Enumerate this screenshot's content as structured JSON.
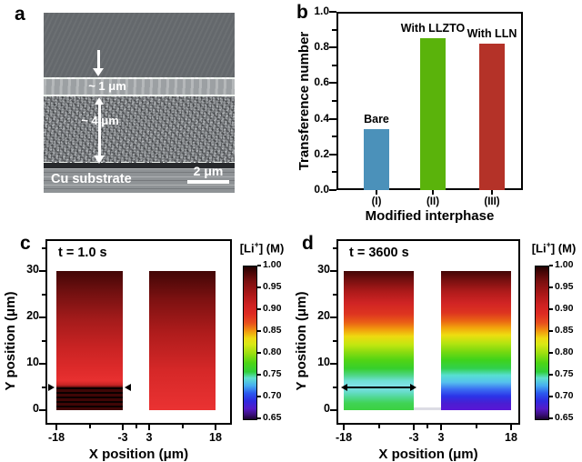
{
  "panels": {
    "a": "a",
    "b": "b",
    "c": "c",
    "d": "d"
  },
  "panel_a": {
    "layer1": "~ 1 μm",
    "layer2": "~ 4 μm",
    "substrate": "Cu substrate",
    "scale_bar": "2 μm"
  },
  "chart_data": [
    {
      "id": "b",
      "type": "bar",
      "categories": [
        "(I)",
        "(II)",
        "(III)"
      ],
      "values": [
        0.34,
        0.85,
        0.82
      ],
      "bar_labels": [
        "Bare",
        "With LLZTO",
        "With LLN"
      ],
      "bar_colors": [
        "#4b91ba",
        "#5ab30b",
        "#b43228"
      ],
      "xlabel": "Modified interphase",
      "ylabel": "Transference number",
      "ylim": [
        0.0,
        1.0
      ],
      "ytick_major_step": 0.2,
      "ytick_minor_step": 0.1,
      "grid": false,
      "legend": "none"
    },
    {
      "id": "c",
      "type": "heatmap",
      "title": "t = 1.0 s",
      "xlabel": "X position (μm)",
      "ylabel": "Y position (μm)",
      "xlim": [
        -18,
        18
      ],
      "ylim": [
        0,
        30
      ],
      "xticks": [
        "-18",
        "-3",
        "3",
        "18"
      ],
      "yticks": [
        "0",
        "10",
        "20",
        "30"
      ],
      "marker": {
        "type": "edge-arrows",
        "y": 5
      },
      "columns": [
        {
          "x_range": [
            -18,
            -3
          ],
          "profile_y_vs_conc": [
            [
              30,
              1.0
            ],
            [
              20,
              0.96
            ],
            [
              10,
              0.92
            ],
            [
              6,
              0.9
            ],
            [
              5,
              0.92
            ],
            [
              4,
              1.0
            ],
            [
              0,
              1.0
            ]
          ],
          "stripes": true,
          "stripe_band_y": [
            0,
            5
          ],
          "gradient": [
            "#420606 0%",
            "#711010 15%",
            "#a41b1b 35%",
            "#c92323 55%",
            "#dd2a2a 70%",
            "#e83030 79%",
            "#c62424 82%",
            "#3a0606 84%",
            "#2a0404 100%"
          ]
        },
        {
          "x_range": [
            3,
            18
          ],
          "profile_y_vs_conc": [
            [
              30,
              1.0
            ],
            [
              20,
              0.97
            ],
            [
              10,
              0.93
            ],
            [
              0,
              0.89
            ]
          ],
          "stripes": false,
          "gradient": [
            "#420606 0%",
            "#7c1111 20%",
            "#b01c1c 45%",
            "#d62828 72%",
            "#ea3232 100%"
          ]
        }
      ],
      "colorbar": {
        "label_pre": "[Li",
        "label_sup": "+",
        "label_post": "] (M)",
        "ticks": [
          "1.00",
          "0.95",
          "0.90",
          "0.85",
          "0.80",
          "0.75",
          "0.70",
          "0.65"
        ]
      }
    },
    {
      "id": "d",
      "type": "heatmap",
      "title": "t = 3600 s",
      "xlabel": "X position (μm)",
      "ylabel": "Y position (μm)",
      "xlim": [
        -18,
        18
      ],
      "ylim": [
        0,
        30
      ],
      "xticks": [
        "-18",
        "-3",
        "3",
        "18"
      ],
      "yticks": [
        "0",
        "10",
        "20",
        "30"
      ],
      "marker": {
        "type": "double-arrow",
        "y": 5
      },
      "columns": [
        {
          "x_range": [
            -18,
            -3
          ],
          "profile_y_vs_conc": [
            [
              30,
              1.0
            ],
            [
              25,
              0.96
            ],
            [
              20,
              0.93
            ],
            [
              15,
              0.85
            ],
            [
              12,
              0.8
            ],
            [
              8,
              0.77
            ],
            [
              5,
              0.74
            ],
            [
              2,
              0.76
            ],
            [
              0,
              0.77
            ]
          ],
          "stripes": false,
          "gradient": [
            "#420606 0%",
            "#791010 7%",
            "#ae1a1a 15%",
            "#d02424 23%",
            "#de3520 31%",
            "#ea5f16 37%",
            "#f29c0d 42%",
            "#eeda10 47%",
            "#c2e710 53%",
            "#8edc10 58%",
            "#52d414 64%",
            "#36cf2c 70%",
            "#4fd687 75%",
            "#70e0d6 79%",
            "#82e2ea 83%",
            "#66dcca 87%",
            "#4fd88f 91%",
            "#40d355 95%",
            "#3bd140 100%"
          ]
        },
        {
          "x_range": [
            3,
            18
          ],
          "profile_y_vs_conc": [
            [
              30,
              1.0
            ],
            [
              25,
              0.96
            ],
            [
              20,
              0.93
            ],
            [
              15,
              0.84
            ],
            [
              12,
              0.8
            ],
            [
              8,
              0.77
            ],
            [
              6,
              0.74
            ],
            [
              3,
              0.7
            ],
            [
              0,
              0.67
            ]
          ],
          "stripes": false,
          "gradient": [
            "#420606 0%",
            "#7a1010 7%",
            "#b01b1b 15%",
            "#d12424 23%",
            "#dd3420 30%",
            "#ea6613 36%",
            "#f2a60c 41%",
            "#eedd10 46%",
            "#b4e410 52%",
            "#77d910 58%",
            "#3ed31b 64%",
            "#31d04d 70%",
            "#57dfd2 75%",
            "#55c0ee 80%",
            "#3a6ef2 85%",
            "#2b33e8 90%",
            "#4a1dd2 95%",
            "#5a16d6 100%"
          ]
        }
      ],
      "colorbar": {
        "label_pre": "[Li",
        "label_sup": "+",
        "label_post": "] (M)",
        "ticks": [
          "1.00",
          "0.95",
          "0.90",
          "0.85",
          "0.80",
          "0.75",
          "0.70",
          "0.65"
        ]
      }
    }
  ],
  "colormap": [
    "#200202 0%",
    "#400505 3%",
    "#7c1010 10%",
    "#aa1717 18%",
    "#cd2121 25%",
    "#de2a22 31%",
    "#e84f1d 37%",
    "#f0930f 42%",
    "#eeda12 47%",
    "#d8e814 51%",
    "#9ade10 57%",
    "#4ed514 63%",
    "#30cf3a 69%",
    "#5fe0cf 73%",
    "#46aef0 78%",
    "#2b59ee 83%",
    "#2e2ae0 88%",
    "#541bc8 93%",
    "#3a0f7a 97%",
    "#1c0530 100%"
  ]
}
